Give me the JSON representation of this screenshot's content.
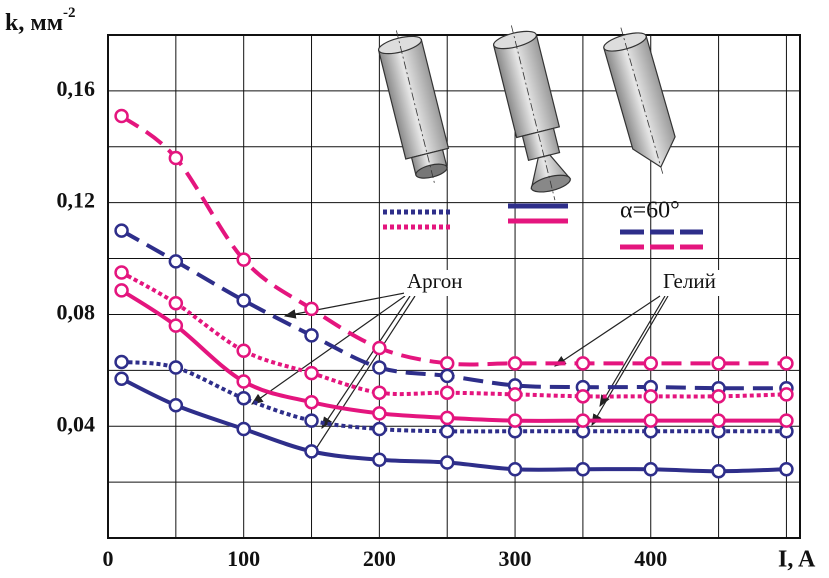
{
  "chart_data": {
    "type": "line",
    "ylabel": {
      "text": "k, мм",
      "sup": "-2"
    },
    "xlabel": "I, A",
    "x": [
      10,
      50,
      100,
      150,
      200,
      250,
      300,
      350,
      400,
      450,
      500
    ],
    "xlim": [
      0,
      510
    ],
    "ylim": [
      0,
      0.18
    ],
    "xticks": [
      0,
      100,
      200,
      300,
      400
    ],
    "yticks": [
      {
        "value": 0.04,
        "label": "0,04"
      },
      {
        "value": 0.08,
        "label": "0,08"
      },
      {
        "value": 0.12,
        "label": "0,12"
      },
      {
        "value": 0.16,
        "label": "0,16"
      }
    ],
    "xgrid": [
      50,
      100,
      150,
      200,
      250,
      300,
      350,
      400,
      450,
      500
    ],
    "ygrid": [
      0.02,
      0.04,
      0.06,
      0.08,
      0.1,
      0.12,
      0.14,
      0.16
    ],
    "grid": true,
    "annotations": [
      "Аргон",
      "Гелий"
    ],
    "angle_label": "α=60°",
    "series": [
      {
        "color": "#e4157e",
        "style": "dashed",
        "values": [
          0.151,
          0.136,
          0.0996,
          0.082,
          0.068,
          0.0625,
          0.0625,
          0.0625,
          0.0625,
          0.0625,
          0.0625
        ]
      },
      {
        "color": "#2e2e8a",
        "style": "dashed",
        "values": [
          0.11,
          0.099,
          0.085,
          0.0725,
          0.061,
          0.058,
          0.0546,
          0.054,
          0.054,
          0.0536,
          0.0536
        ]
      },
      {
        "color": "#e4157e",
        "style": "dotted",
        "values": [
          0.095,
          0.084,
          0.067,
          0.059,
          0.052,
          0.052,
          0.0514,
          0.0507,
          0.0507,
          0.0507,
          0.0514
        ]
      },
      {
        "color": "#2e2e8a",
        "style": "dotted",
        "values": [
          0.063,
          0.061,
          0.05,
          0.042,
          0.039,
          0.0382,
          0.0382,
          0.0382,
          0.0382,
          0.0382,
          0.0382
        ]
      },
      {
        "color": "#e4157e",
        "style": "solid",
        "values": [
          0.0886,
          0.076,
          0.056,
          0.0486,
          0.0446,
          0.043,
          0.042,
          0.042,
          0.042,
          0.042,
          0.042
        ]
      },
      {
        "color": "#2e2e8a",
        "style": "solid",
        "values": [
          0.057,
          0.0475,
          0.039,
          0.031,
          0.028,
          0.027,
          0.0246,
          0.0246,
          0.0246,
          0.0239,
          0.0246
        ]
      }
    ]
  }
}
